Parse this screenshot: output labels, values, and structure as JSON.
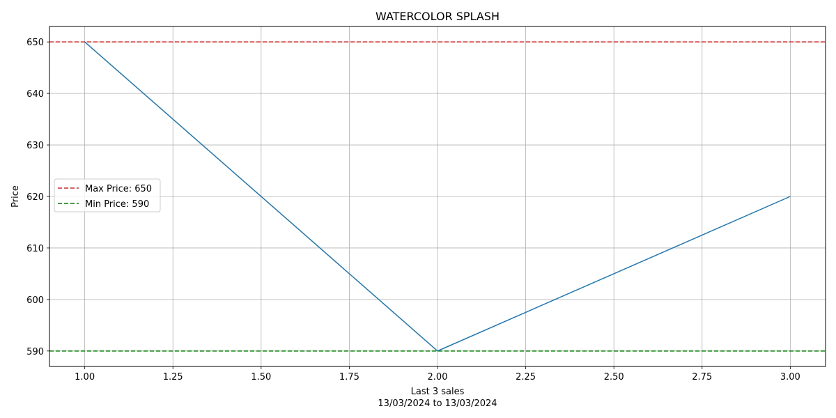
{
  "chart_data": {
    "type": "line",
    "title": "WATERCOLOR SPLASH",
    "xlabel": "Last 3 sales",
    "xlabel_sub": "13/03/2024 to 13/03/2024",
    "ylabel": "Price",
    "xlim": [
      0.9,
      3.1
    ],
    "ylim": [
      587,
      653
    ],
    "x_ticks": [
      1.0,
      1.25,
      1.5,
      1.75,
      2.0,
      2.25,
      2.5,
      2.75,
      3.0
    ],
    "x_tick_labels": [
      "1.00",
      "1.25",
      "1.50",
      "1.75",
      "2.00",
      "2.25",
      "2.50",
      "2.75",
      "3.00"
    ],
    "y_ticks": [
      590,
      600,
      610,
      620,
      630,
      640,
      650
    ],
    "y_tick_labels": [
      "590",
      "600",
      "610",
      "620",
      "630",
      "640",
      "650"
    ],
    "grid": true,
    "series": [
      {
        "x": [
          1,
          2,
          3
        ],
        "y": [
          650,
          590,
          620
        ],
        "color": "#1f77b4"
      }
    ],
    "reference_lines": [
      {
        "label": "Max Price: 650",
        "y": 650,
        "color": "#d62728",
        "style": "dashed"
      },
      {
        "label": "Min Price: 590",
        "y": 590,
        "color": "#008000",
        "style": "dashed"
      }
    ],
    "legend_position": "center-left"
  }
}
